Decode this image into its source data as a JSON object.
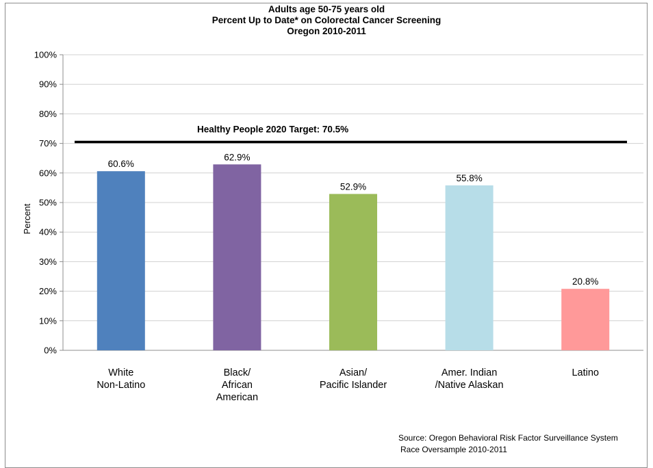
{
  "chart_data": {
    "type": "bar",
    "title": [
      "Adults age 50-75 years old",
      "Percent Up to Date* on Colorectal  Cancer Screening",
      "Oregon 2010-2011"
    ],
    "ylabel": "Percent",
    "ylim": [
      0,
      100
    ],
    "yticks": [
      "0%",
      "10%",
      "20%",
      "30%",
      "40%",
      "50%",
      "60%",
      "70%",
      "80%",
      "90%",
      "100%"
    ],
    "categories": [
      [
        "White",
        "Non-Latino"
      ],
      [
        "Black/",
        "African",
        "American"
      ],
      [
        "Asian/",
        "Pacific Islander"
      ],
      [
        "Amer. Indian",
        "/Native Alaskan"
      ],
      [
        "Latino"
      ]
    ],
    "values": [
      60.6,
      62.9,
      52.9,
      55.8,
      20.8
    ],
    "value_labels": [
      "60.6%",
      "62.9%",
      "52.9%",
      "55.8%",
      "20.8%"
    ],
    "colors": [
      "#4f81bd",
      "#8064a2",
      "#9bbb59",
      "#b7dde8",
      "#ff9999"
    ],
    "grid": true,
    "target": {
      "value": 70.5,
      "label": "Healthy People 2020 Target: 70.5%"
    }
  },
  "source": {
    "line1": "Source: Oregon Behavioral Risk Factor Surveillance System",
    "line2": "Race Oversample 2010-2011"
  }
}
